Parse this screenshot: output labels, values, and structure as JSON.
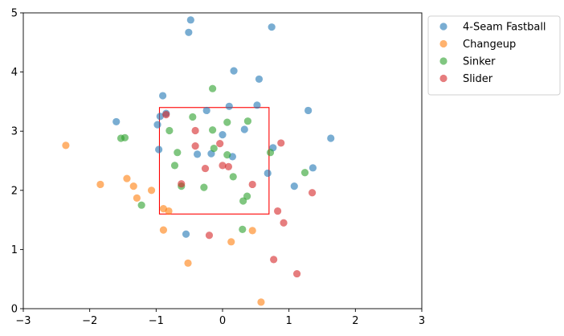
{
  "chart_data": {
    "type": "scatter",
    "title": "",
    "xlabel": "",
    "ylabel": "",
    "xlim": [
      -3,
      3
    ],
    "ylim": [
      0,
      5
    ],
    "xticks": [
      -3,
      -2,
      -1,
      0,
      1,
      2,
      3
    ],
    "yticks": [
      0,
      1,
      2,
      3,
      4,
      5
    ],
    "grid": false,
    "legend_position": "outside top-right",
    "strike_zone": {
      "x": [
        -0.95,
        0.7
      ],
      "y": [
        1.6,
        3.4
      ],
      "color": "#ff0000"
    },
    "series": [
      {
        "name": "4-Seam Fastball",
        "color": "#1f77b4",
        "points": [
          [
            -0.48,
            4.88
          ],
          [
            -0.51,
            4.67
          ],
          [
            0.74,
            4.76
          ],
          [
            0.17,
            4.02
          ],
          [
            0.55,
            3.88
          ],
          [
            -0.9,
            3.6
          ],
          [
            0.52,
            3.44
          ],
          [
            0.1,
            3.42
          ],
          [
            -0.24,
            3.35
          ],
          [
            1.29,
            3.35
          ],
          [
            -0.85,
            3.3
          ],
          [
            -0.94,
            3.25
          ],
          [
            -1.6,
            3.16
          ],
          [
            -0.98,
            3.11
          ],
          [
            0.33,
            3.03
          ],
          [
            0.0,
            2.94
          ],
          [
            1.63,
            2.88
          ],
          [
            0.76,
            2.72
          ],
          [
            -0.96,
            2.69
          ],
          [
            -0.38,
            2.61
          ],
          [
            -0.17,
            2.62
          ],
          [
            0.15,
            2.57
          ],
          [
            1.36,
            2.38
          ],
          [
            0.68,
            2.29
          ],
          [
            1.08,
            2.07
          ],
          [
            -0.55,
            1.26
          ]
        ]
      },
      {
        "name": "Changeup",
        "color": "#ff7f0e",
        "points": [
          [
            -2.36,
            2.76
          ],
          [
            -1.84,
            2.1
          ],
          [
            -1.44,
            2.2
          ],
          [
            -1.34,
            2.07
          ],
          [
            -1.07,
            2.0
          ],
          [
            -1.29,
            1.87
          ],
          [
            -0.89,
            1.69
          ],
          [
            -0.81,
            1.65
          ],
          [
            -0.89,
            1.33
          ],
          [
            0.13,
            1.13
          ],
          [
            0.45,
            1.32
          ],
          [
            -0.52,
            0.77
          ],
          [
            0.58,
            0.11
          ]
        ]
      },
      {
        "name": "Sinker",
        "color": "#2ca02c",
        "points": [
          [
            -0.15,
            3.72
          ],
          [
            -0.45,
            3.24
          ],
          [
            0.07,
            3.15
          ],
          [
            0.38,
            3.17
          ],
          [
            -0.8,
            3.01
          ],
          [
            -0.15,
            3.02
          ],
          [
            -1.53,
            2.88
          ],
          [
            -1.47,
            2.89
          ],
          [
            -0.13,
            2.71
          ],
          [
            -0.68,
            2.64
          ],
          [
            0.07,
            2.6
          ],
          [
            0.72,
            2.64
          ],
          [
            -0.72,
            2.42
          ],
          [
            0.16,
            2.23
          ],
          [
            1.24,
            2.3
          ],
          [
            -0.62,
            2.07
          ],
          [
            -0.28,
            2.05
          ],
          [
            0.37,
            1.9
          ],
          [
            -1.22,
            1.75
          ],
          [
            0.31,
            1.82
          ],
          [
            0.3,
            1.34
          ]
        ]
      },
      {
        "name": "Slider",
        "color": "#d62728",
        "points": [
          [
            -0.85,
            3.28
          ],
          [
            -0.41,
            3.01
          ],
          [
            -0.04,
            2.79
          ],
          [
            0.88,
            2.8
          ],
          [
            -0.41,
            2.75
          ],
          [
            0.0,
            2.42
          ],
          [
            0.09,
            2.4
          ],
          [
            -0.26,
            2.37
          ],
          [
            -0.62,
            2.11
          ],
          [
            0.45,
            2.1
          ],
          [
            1.35,
            1.96
          ],
          [
            0.83,
            1.65
          ],
          [
            0.92,
            1.45
          ],
          [
            -0.2,
            1.24
          ],
          [
            0.77,
            0.83
          ],
          [
            1.12,
            0.59
          ]
        ]
      }
    ]
  }
}
